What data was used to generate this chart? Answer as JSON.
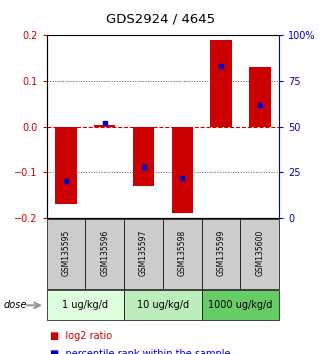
{
  "title": "GDS2924 / 4645",
  "samples": [
    "GSM135595",
    "GSM135596",
    "GSM135597",
    "GSM135598",
    "GSM135599",
    "GSM135600"
  ],
  "log2_ratios": [
    -0.17,
    0.003,
    -0.13,
    -0.19,
    0.19,
    0.13
  ],
  "percentile_ranks": [
    20,
    52,
    28,
    22,
    83,
    62
  ],
  "ylim_left": [
    -0.2,
    0.2
  ],
  "ylim_right": [
    0,
    100
  ],
  "yticks_left": [
    -0.2,
    -0.1,
    0.0,
    0.1,
    0.2
  ],
  "yticks_right": [
    0,
    25,
    50,
    75,
    100
  ],
  "ytick_labels_right": [
    "0",
    "25",
    "50",
    "75",
    "100%"
  ],
  "bar_color": "#cc0000",
  "dot_color": "#0000cc",
  "dashed_line_color": "#cc0000",
  "dotted_line_color": "#000000",
  "dose_groups": [
    {
      "label": "1 ug/kg/d",
      "n_samples": 2,
      "color": "#ddffdd"
    },
    {
      "label": "10 ug/kg/d",
      "n_samples": 2,
      "color": "#bbeebb"
    },
    {
      "label": "1000 ug/kg/d",
      "n_samples": 2,
      "color": "#66cc66"
    }
  ],
  "legend_red_label": "log2 ratio",
  "legend_blue_label": "percentile rank within the sample",
  "dose_label": "dose",
  "bg_color_plot": "#ffffff",
  "bg_color_sample_area": "#cccccc",
  "left_tick_color": "#cc0000",
  "right_tick_color": "#0000cc",
  "title_fontsize": 9.5,
  "tick_fontsize": 7,
  "sample_fontsize": 5.5,
  "dose_fontsize": 7,
  "legend_fontsize": 7,
  "dose_label_fontsize": 7
}
